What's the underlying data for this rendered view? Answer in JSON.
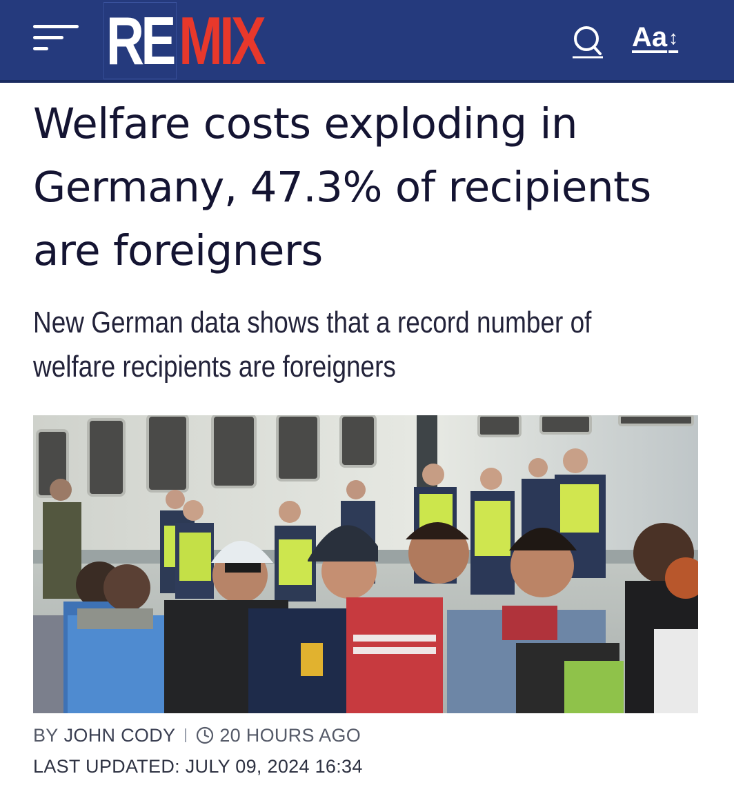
{
  "header": {
    "logo_left": "RE",
    "logo_right": "MIX",
    "font_size_label": "Aa",
    "font_size_arrow": "↕",
    "icons": [
      "menu-icon",
      "search-icon"
    ],
    "colors": {
      "background": "#253a7d",
      "logo_accent": "#e8382b"
    }
  },
  "article": {
    "headline": "Welfare costs exploding in Germany, 47.3% of recipients are foreigners",
    "subheadline": "New German data shows that a record number of welfare recipients are foreigners",
    "byline_prefix": "BY",
    "author": "JOHN CODY",
    "time_ago": "20 HOURS AGO",
    "last_updated": "LAST UPDATED: JULY 09, 2024 16:34"
  }
}
